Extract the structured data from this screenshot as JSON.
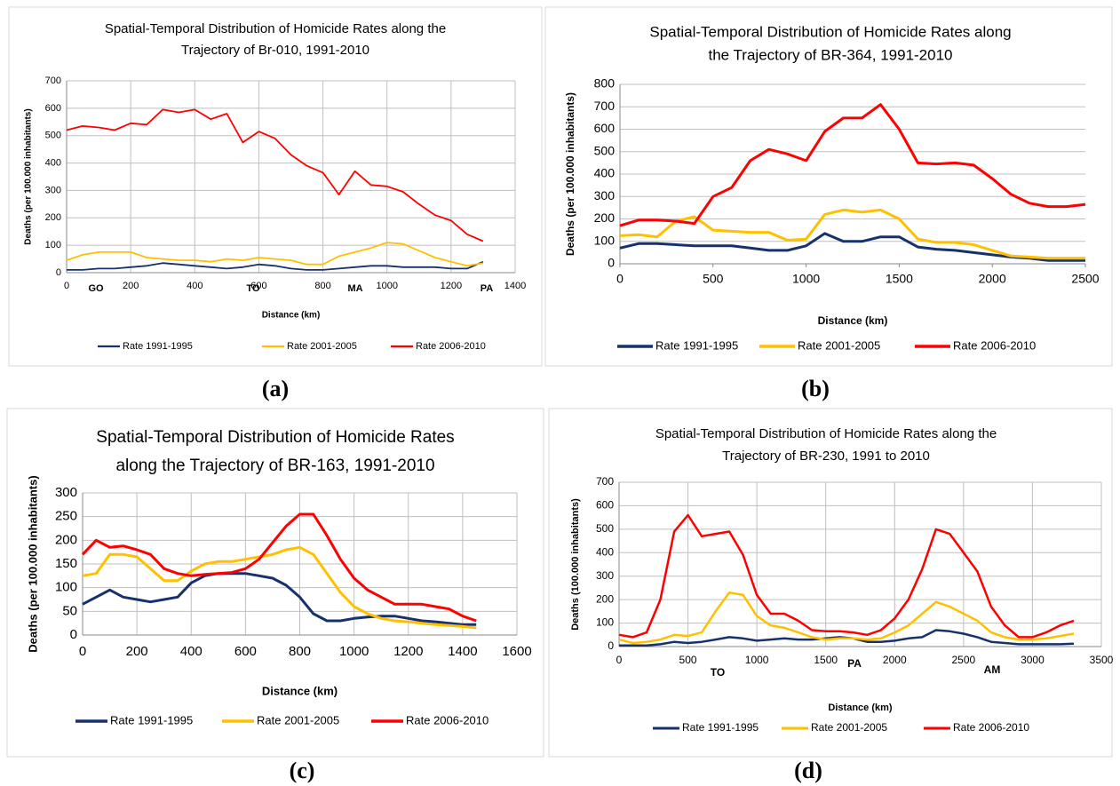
{
  "chart_data": [
    {
      "type": "line",
      "caption": "(a)",
      "title": [
        "Spatial-Temporal Distribution of Homicide Rates along the",
        "Trajectory of Br-010, 1991-2010"
      ],
      "xlabel": "Distance (km)",
      "ylabel": "Deaths (per 100.000 inhabitants)",
      "annotations": [
        "GO",
        "TO",
        "MA",
        "PA"
      ],
      "x": [
        0,
        50,
        100,
        150,
        200,
        250,
        300,
        350,
        400,
        450,
        500,
        550,
        600,
        650,
        700,
        750,
        800,
        850,
        900,
        950,
        1000,
        1050,
        1100,
        1150,
        1200,
        1250,
        1300
      ],
      "series": [
        {
          "name": "Rate 1991-1995",
          "color": "#16316c",
          "values": [
            10,
            10,
            15,
            15,
            20,
            25,
            35,
            30,
            25,
            20,
            15,
            20,
            30,
            25,
            15,
            10,
            10,
            15,
            20,
            25,
            25,
            20,
            20,
            20,
            15,
            15,
            40
          ]
        },
        {
          "name": "Rate 2001-2005",
          "color": "#ffc000",
          "values": [
            45,
            65,
            75,
            75,
            75,
            55,
            50,
            45,
            45,
            40,
            50,
            45,
            55,
            50,
            45,
            30,
            30,
            60,
            75,
            90,
            110,
            105,
            80,
            55,
            40,
            25,
            35
          ]
        },
        {
          "name": "Rate 2006-2010",
          "color": "#ff0000",
          "values": [
            520,
            535,
            530,
            520,
            545,
            540,
            595,
            585,
            595,
            560,
            580,
            475,
            515,
            490,
            430,
            390,
            365,
            285,
            370,
            320,
            315,
            295,
            250,
            210,
            190,
            140,
            115
          ]
        }
      ],
      "xlim": [
        0,
        1400
      ],
      "xticks": [
        0,
        200,
        400,
        600,
        800,
        1000,
        1200,
        1400
      ],
      "ylim": [
        0,
        700
      ],
      "yticks": [
        0,
        100,
        200,
        300,
        400,
        500,
        600,
        700
      ],
      "grid": "both"
    },
    {
      "type": "line",
      "caption": "(b)",
      "title": [
        "Spatial-Temporal Distribution of Homicide Rates along",
        "the Trajectory of BR-364, 1991-2010"
      ],
      "xlabel": "Distance (km)",
      "ylabel": "Deaths (per 100.000 inhabitants)",
      "x": [
        0,
        100,
        200,
        300,
        400,
        500,
        600,
        700,
        800,
        900,
        1000,
        1100,
        1200,
        1300,
        1400,
        1500,
        1600,
        1700,
        1800,
        1900,
        2000,
        2100,
        2200,
        2300,
        2400,
        2500
      ],
      "series": [
        {
          "name": "Rate 1991-1995",
          "color": "#16316c",
          "values": [
            70,
            90,
            90,
            85,
            80,
            80,
            80,
            70,
            60,
            60,
            80,
            135,
            100,
            100,
            120,
            120,
            75,
            65,
            60,
            50,
            40,
            30,
            25,
            15,
            15,
            15
          ]
        },
        {
          "name": "Rate 2001-2005",
          "color": "#ffc000",
          "values": [
            125,
            130,
            120,
            190,
            210,
            150,
            145,
            140,
            140,
            105,
            110,
            220,
            240,
            230,
            240,
            200,
            110,
            95,
            95,
            85,
            60,
            35,
            30,
            25,
            25,
            25
          ]
        },
        {
          "name": "Rate 2006-2010",
          "color": "#ff0000",
          "values": [
            170,
            195,
            195,
            190,
            180,
            300,
            340,
            460,
            510,
            490,
            460,
            590,
            650,
            650,
            710,
            600,
            450,
            445,
            450,
            440,
            380,
            310,
            270,
            255,
            255,
            265
          ]
        }
      ],
      "xlim": [
        0,
        2500
      ],
      "xticks": [
        0,
        500,
        1000,
        1500,
        2000,
        2500
      ],
      "ylim": [
        0,
        800
      ],
      "yticks": [
        0,
        100,
        200,
        300,
        400,
        500,
        600,
        700,
        800
      ],
      "grid": "y"
    },
    {
      "type": "line",
      "caption": "(c)",
      "title": [
        "Spatial-Temporal Distribution of Homicide Rates",
        "along the Trajectory of BR-163, 1991-2010"
      ],
      "xlabel": "Distance (km)",
      "ylabel": "Deaths (per 100.000 inhabitants)",
      "x": [
        0,
        50,
        100,
        150,
        200,
        250,
        300,
        350,
        400,
        450,
        500,
        550,
        600,
        650,
        700,
        750,
        800,
        850,
        900,
        950,
        1000,
        1050,
        1100,
        1150,
        1200,
        1250,
        1300,
        1350,
        1400,
        1450
      ],
      "series": [
        {
          "name": "Rate 1991-1995",
          "color": "#16316c",
          "values": [
            65,
            80,
            95,
            80,
            75,
            70,
            75,
            80,
            110,
            125,
            130,
            130,
            130,
            125,
            120,
            105,
            80,
            45,
            30,
            30,
            35,
            38,
            40,
            40,
            35,
            30,
            28,
            25,
            22,
            22
          ]
        },
        {
          "name": "Rate 2001-2005",
          "color": "#ffc000",
          "values": [
            125,
            130,
            170,
            170,
            165,
            140,
            115,
            115,
            135,
            150,
            155,
            155,
            160,
            165,
            170,
            180,
            185,
            170,
            130,
            90,
            60,
            45,
            35,
            30,
            28,
            25,
            22,
            20,
            18,
            15
          ]
        },
        {
          "name": "Rate 2006-2010",
          "color": "#ff0000",
          "values": [
            170,
            200,
            185,
            188,
            180,
            170,
            140,
            130,
            125,
            128,
            130,
            132,
            140,
            160,
            195,
            230,
            255,
            255,
            210,
            160,
            120,
            95,
            80,
            65,
            65,
            65,
            60,
            55,
            40,
            30
          ]
        }
      ],
      "xlim": [
        0,
        1600
      ],
      "xticks": [
        0,
        200,
        400,
        600,
        800,
        1000,
        1200,
        1400,
        1600
      ],
      "ylim": [
        0,
        300
      ],
      "yticks": [
        0,
        50,
        100,
        150,
        200,
        250,
        300
      ],
      "grid": "both"
    },
    {
      "type": "line",
      "caption": "(d)",
      "title": [
        "Spatial-Temporal Distribution of Homicide Rates along the",
        "Trajectory of  BR-230, 1991 to 2010"
      ],
      "xlabel": "Distance (km)",
      "ylabel": "Deaths (100.000 inhabitants)",
      "annotations": [
        "TO",
        "PA",
        "AM"
      ],
      "x": [
        0,
        100,
        200,
        300,
        400,
        500,
        600,
        700,
        800,
        900,
        1000,
        1100,
        1200,
        1300,
        1400,
        1500,
        1600,
        1700,
        1800,
        1900,
        2000,
        2100,
        2200,
        2300,
        2400,
        2500,
        2600,
        2700,
        2800,
        2900,
        3000,
        3100,
        3200,
        3300
      ],
      "series": [
        {
          "name": "Rate 1991-1995",
          "color": "#16316c",
          "values": [
            5,
            5,
            5,
            10,
            20,
            15,
            20,
            30,
            40,
            35,
            25,
            30,
            35,
            30,
            30,
            35,
            40,
            35,
            20,
            20,
            25,
            35,
            40,
            70,
            65,
            55,
            40,
            20,
            15,
            10,
            10,
            10,
            10,
            12
          ]
        },
        {
          "name": "Rate 2001-2005",
          "color": "#ffc000",
          "values": [
            30,
            15,
            20,
            30,
            50,
            45,
            60,
            150,
            230,
            220,
            130,
            90,
            80,
            60,
            40,
            30,
            35,
            35,
            30,
            35,
            60,
            90,
            140,
            190,
            170,
            140,
            110,
            60,
            40,
            30,
            30,
            35,
            45,
            55
          ]
        },
        {
          "name": "Rate 2006-2010",
          "color": "#ff0000",
          "values": [
            50,
            40,
            60,
            200,
            490,
            560,
            470,
            480,
            490,
            390,
            220,
            140,
            140,
            110,
            70,
            65,
            65,
            60,
            50,
            70,
            120,
            200,
            330,
            500,
            480,
            400,
            320,
            170,
            90,
            40,
            40,
            60,
            90,
            110
          ]
        }
      ],
      "xlim": [
        0,
        3500
      ],
      "xticks": [
        0,
        500,
        1000,
        1500,
        2000,
        2500,
        3000,
        3500
      ],
      "ylim": [
        0,
        700
      ],
      "yticks": [
        0,
        100,
        200,
        300,
        400,
        500,
        600,
        700
      ],
      "grid": "both"
    }
  ]
}
